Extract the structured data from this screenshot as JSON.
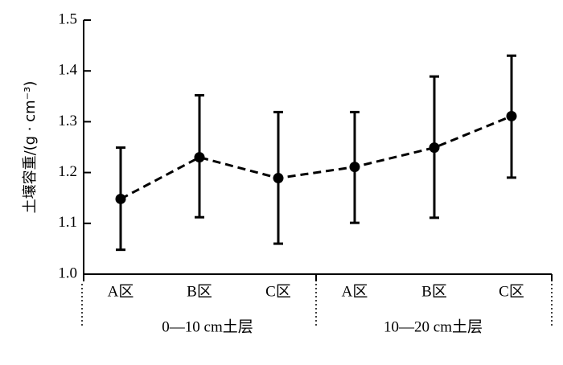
{
  "chart_data": {
    "type": "line",
    "ylabel": "土壤容重/(g · cm⁻³)",
    "ylim": [
      1.0,
      1.5
    ],
    "yticks": [
      1.0,
      1.1,
      1.2,
      1.3,
      1.4,
      1.5
    ],
    "ytick_labels": [
      "1.0",
      "1.1",
      "1.2",
      "1.3",
      "1.4",
      "1.5"
    ],
    "categories": [
      "A区",
      "B区",
      "C区",
      "A区",
      "B区",
      "C区"
    ],
    "groups": [
      {
        "label": "0—10 cm土层",
        "span": [
          0,
          2
        ]
      },
      {
        "label": "10—20  cm土层",
        "span": [
          3,
          5
        ]
      }
    ],
    "series": [
      {
        "values": [
          1.148,
          1.23,
          1.189,
          1.211,
          1.249,
          1.311
        ],
        "error_low": [
          1.048,
          1.112,
          1.06,
          1.101,
          1.111,
          1.19
        ],
        "error_high": [
          1.249,
          1.352,
          1.319,
          1.319,
          1.389,
          1.43
        ],
        "line_style": "dashed",
        "marker": "filled-circle",
        "color": "#000000"
      }
    ],
    "grid": false,
    "legend": "none"
  }
}
